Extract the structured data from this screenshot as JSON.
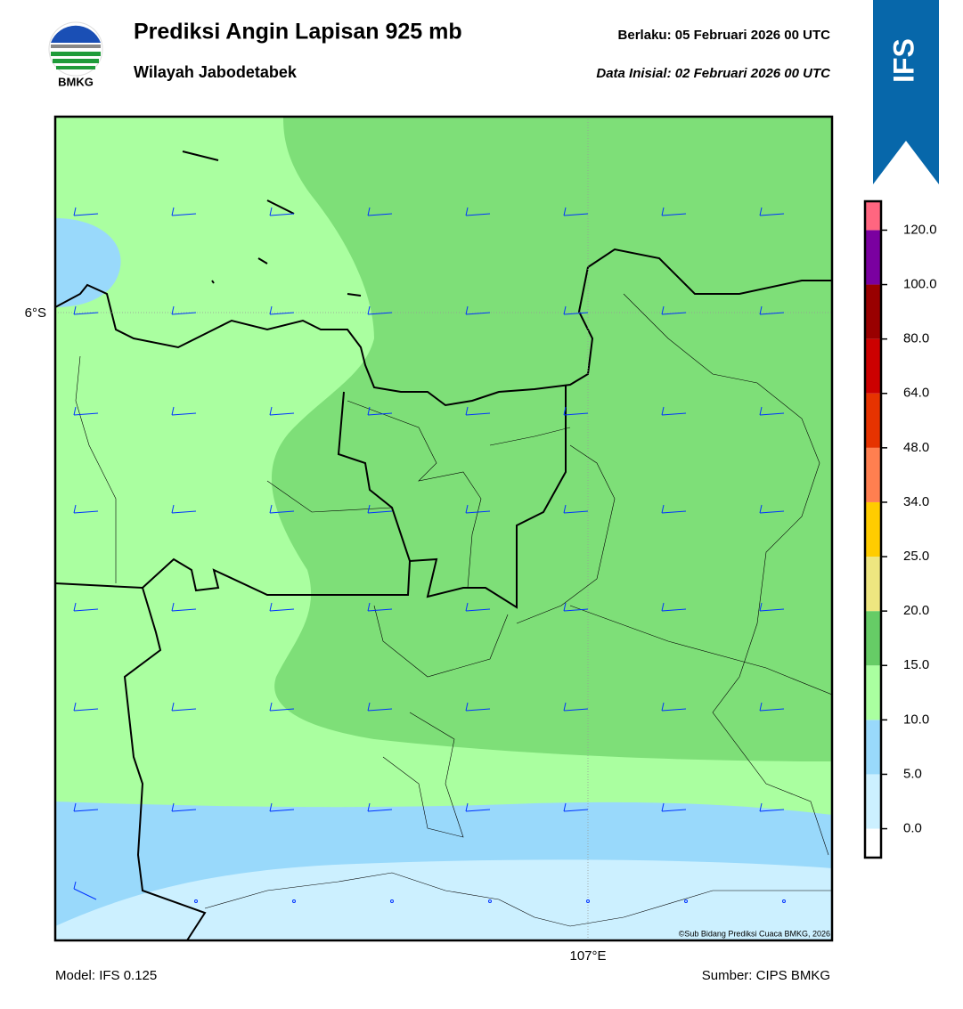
{
  "header": {
    "title": "Prediksi Angin Lapisan 925 mb",
    "subtitle": "Wilayah Jabodetabek",
    "valid": "Berlaku:  05 Februari 2026 00 UTC",
    "initial": "Data Inisial:  02 Februari 2026 00 UTC",
    "logo_text": "BMKG",
    "model_badge": "IFS"
  },
  "map": {
    "lat_label": "6°S",
    "lon_label": "107°E",
    "credit": "©Sub Bidang Prediksi Cuaca BMKG, 2026"
  },
  "colorbar": {
    "ticks": [
      "0.0",
      "5.0",
      "10.0",
      "15.0",
      "20.0",
      "25.0",
      "34.0",
      "48.0",
      "64.0",
      "80.0",
      "100.0",
      "120.0"
    ],
    "colors": [
      "#ffffff",
      "#ccf0ff",
      "#99d9fb",
      "#aaffa0",
      "#66cc66",
      "#eee680",
      "#ffcc00",
      "#ff7f50",
      "#e63300",
      "#cc0000",
      "#990000",
      "#7a00a0",
      "#ff6680"
    ]
  },
  "footer": {
    "model": "Model: IFS 0.125",
    "source": "Sumber: CIPS BMKG"
  }
}
